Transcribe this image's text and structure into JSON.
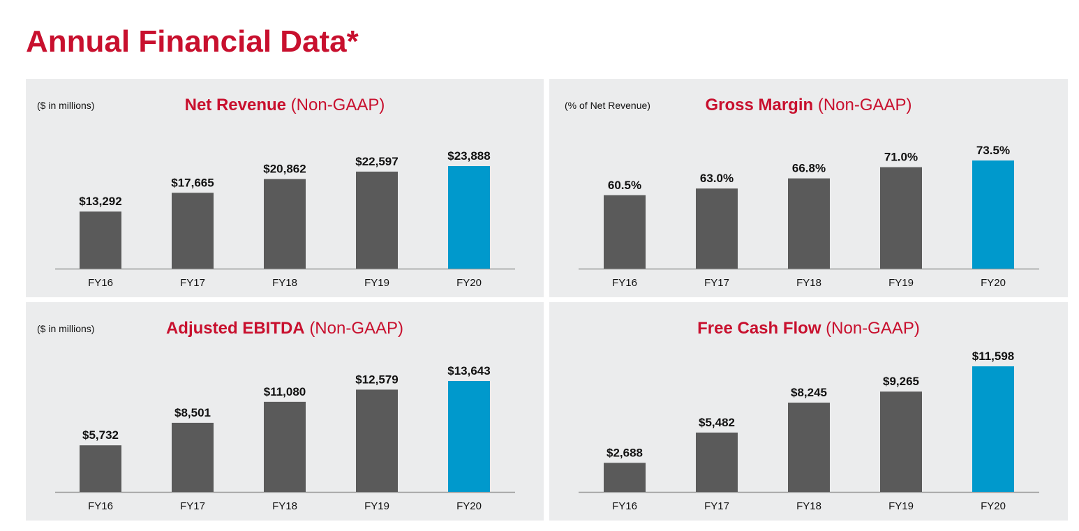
{
  "page_title": "Annual Financial Data*",
  "colors": {
    "accent": "#c8102e",
    "bar": "#5a5a5a",
    "highlight": "#0099cc",
    "panel_bg": "#ebeced",
    "axis": "#9a9a9a"
  },
  "chart_data": [
    {
      "type": "bar",
      "title": "Net Revenue",
      "subtitle": "(Non-GAAP)",
      "unit_note": "($ in millions)",
      "categories": [
        "FY16",
        "FY17",
        "FY18",
        "FY19",
        "FY20"
      ],
      "values": [
        13292,
        17665,
        20862,
        22597,
        23888
      ],
      "value_labels": [
        "$13,292",
        "$17,665",
        "$20,862",
        "$22,597",
        "$23,888"
      ],
      "highlight_index": 4,
      "ylim": [
        0,
        30000
      ],
      "grid": false,
      "legend": "none"
    },
    {
      "type": "bar",
      "title": "Gross Margin",
      "subtitle": "(Non-GAAP)",
      "unit_note": "(% of Net Revenue)",
      "categories": [
        "FY16",
        "FY17",
        "FY18",
        "FY19",
        "FY20"
      ],
      "values": [
        60.5,
        63.0,
        66.8,
        71.0,
        73.5
      ],
      "value_labels": [
        "60.5%",
        "63.0%",
        "66.8%",
        "71.0%",
        "73.5%"
      ],
      "highlight_index": 4,
      "ylim": [
        33,
        80
      ],
      "grid": false,
      "legend": "none"
    },
    {
      "type": "bar",
      "title": "Adjusted EBITDA",
      "subtitle": "(Non-GAAP)",
      "unit_note": "($ in millions)",
      "categories": [
        "FY16",
        "FY17",
        "FY18",
        "FY19",
        "FY20"
      ],
      "values": [
        5732,
        8501,
        11080,
        12579,
        13643
      ],
      "value_labels": [
        "$5,732",
        "$8,501",
        "$11,080",
        "$12,579",
        "$13,643"
      ],
      "highlight_index": 4,
      "ylim": [
        0,
        16000
      ],
      "grid": false,
      "legend": "none"
    },
    {
      "type": "bar",
      "title": "Free Cash Flow",
      "subtitle": "(Non-GAAP)",
      "unit_note": "",
      "categories": [
        "FY16",
        "FY17",
        "FY18",
        "FY19",
        "FY20"
      ],
      "values": [
        2688,
        5482,
        8245,
        9265,
        11598
      ],
      "value_labels": [
        "$2,688",
        "$5,482",
        "$8,245",
        "$9,265",
        "$11,598"
      ],
      "highlight_index": 4,
      "ylim": [
        0,
        12500
      ],
      "grid": false,
      "legend": "none"
    }
  ]
}
